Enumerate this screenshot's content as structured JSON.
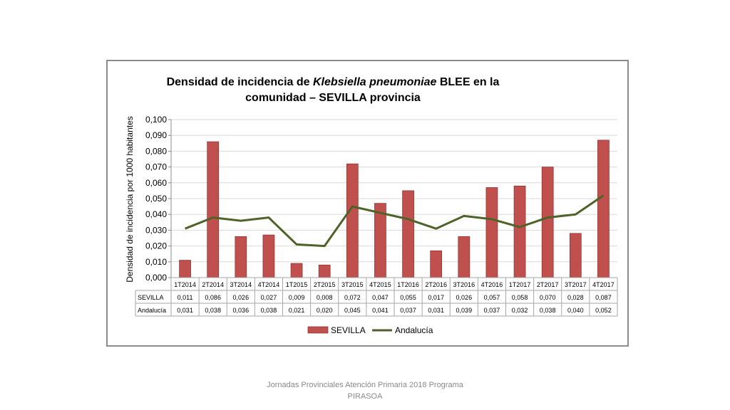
{
  "chart_data": {
    "type": "bar",
    "title_line1": "Densidad de incidencia de ",
    "title_italic": "Klebsiella pneumoniae",
    "title_line1_end": " BLEE en la",
    "title_line2": "comunidad – SEVILLA provincia",
    "ylabel": "Densidad de incidencia por 1000 habitantes",
    "ylim": [
      0,
      0.1
    ],
    "yticks": [
      "0,000",
      "0,010",
      "0,020",
      "0,030",
      "0,040",
      "0,050",
      "0,060",
      "0,070",
      "0,080",
      "0,090",
      "0,100"
    ],
    "categories": [
      "1T2014",
      "2T2014",
      "3T2014",
      "4T2014",
      "1T2015",
      "2T2015",
      "3T2015",
      "4T2015",
      "1T2016",
      "2T2016",
      "3T2016",
      "4T2016",
      "1T2017",
      "2T2017",
      "3T2017",
      "4T2017"
    ],
    "series": [
      {
        "name": "SEVILLA",
        "type": "bar",
        "color": "#c0504d",
        "values": [
          0.011,
          0.086,
          0.026,
          0.027,
          0.009,
          0.008,
          0.072,
          0.047,
          0.055,
          0.017,
          0.026,
          0.057,
          0.058,
          0.07,
          0.028,
          0.087
        ],
        "labels": [
          "0,011",
          "0,086",
          "0,026",
          "0,027",
          "0,009",
          "0,008",
          "0,072",
          "0,047",
          "0,055",
          "0,017",
          "0,026",
          "0,057",
          "0,058",
          "0,070",
          "0,028",
          "0,087"
        ]
      },
      {
        "name": "Andalucía",
        "type": "line",
        "color": "#4f6228",
        "values": [
          0.031,
          0.038,
          0.036,
          0.038,
          0.021,
          0.02,
          0.045,
          0.041,
          0.037,
          0.031,
          0.039,
          0.037,
          0.032,
          0.038,
          0.04,
          0.052
        ],
        "labels": [
          "0,031",
          "0,038",
          "0,036",
          "0,038",
          "0,021",
          "0,020",
          "0,045",
          "0,041",
          "0,037",
          "0,031",
          "0,039",
          "0,037",
          "0,032",
          "0,038",
          "0,040",
          "0,052"
        ]
      }
    ],
    "grid": true,
    "legend_position": "bottom"
  },
  "footer": {
    "line1": "Jornadas Provinciales Atención Primaria 2018  Programa",
    "line2": "PIRASOA"
  }
}
